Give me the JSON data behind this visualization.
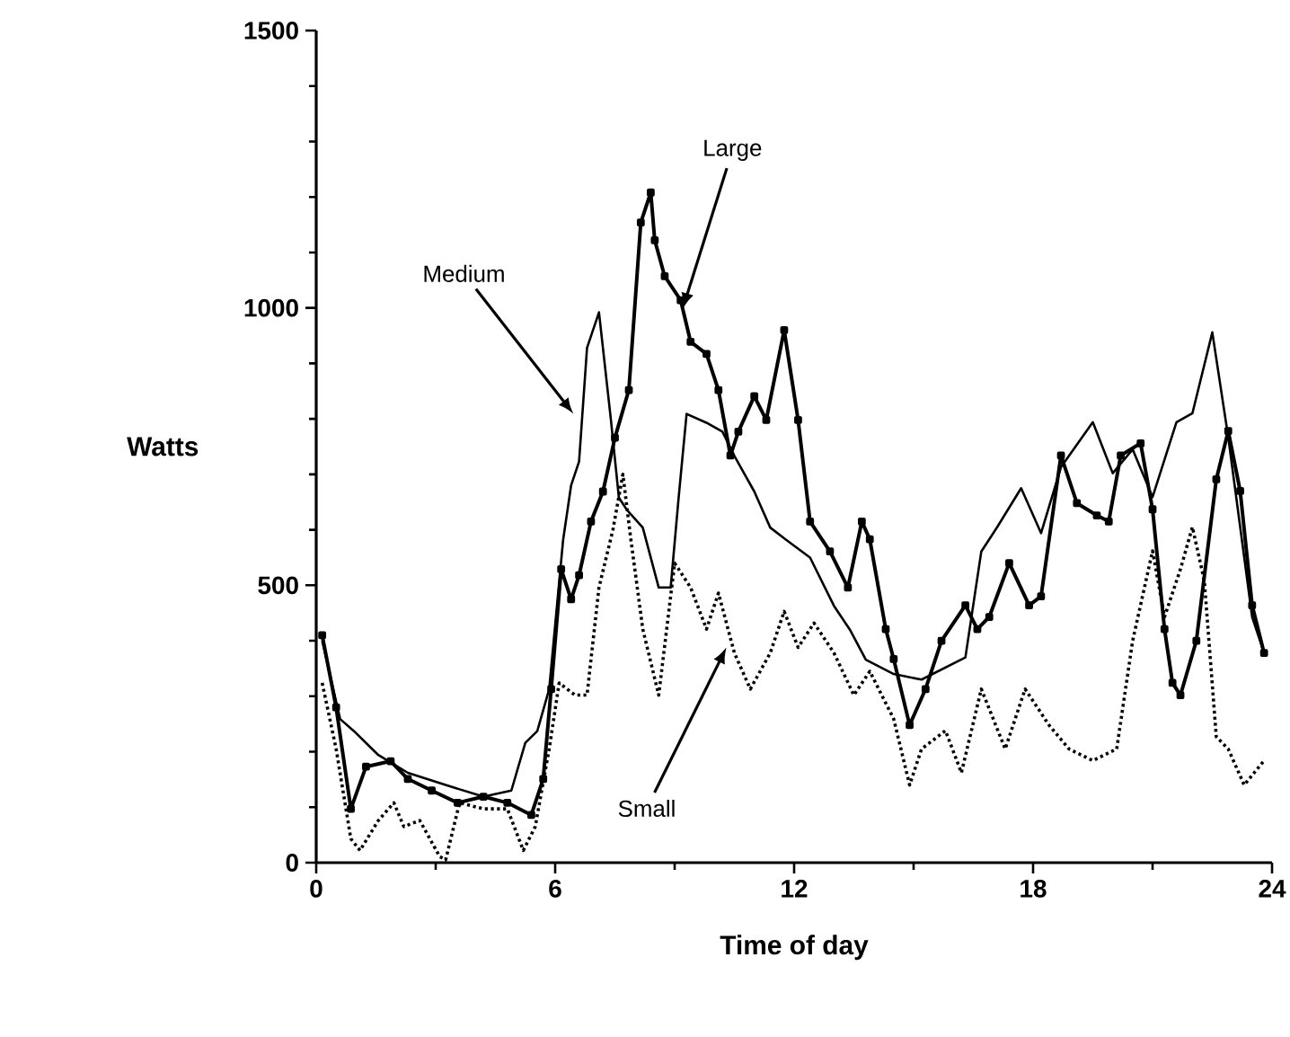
{
  "chart_data": {
    "type": "line",
    "xlabel": "Time of day",
    "ylabel": "Watts",
    "xlim": [
      0,
      24
    ],
    "ylim": [
      0,
      1500
    ],
    "xticks": [
      0,
      6,
      12,
      18,
      24
    ],
    "yticks": [
      0,
      500,
      1000,
      1500
    ],
    "series": [
      {
        "color": "#000000",
        "line_style": "solid",
        "marker": "square",
        "x": [
          0.15,
          0.5,
          0.87,
          1.25,
          1.87,
          2.3,
          2.9,
          3.55,
          4.2,
          4.8,
          5.4,
          5.7,
          5.9,
          6.15,
          6.4,
          6.6,
          6.9,
          7.2,
          7.5,
          7.85,
          8.15,
          8.4,
          8.5,
          8.75,
          9.15,
          9.4,
          9.8,
          10.1,
          10.4,
          10.6,
          11,
          11.3,
          11.75,
          12.1,
          12.4,
          12.9,
          13.35,
          13.7,
          13.9,
          14.3,
          14.5,
          14.9,
          15.3,
          15.7,
          16.3,
          16.6,
          16.9,
          17.4,
          17.9,
          18.2,
          18.7,
          19.1,
          19.6,
          19.9,
          20.2,
          20.7,
          21,
          21.3,
          21.5,
          21.7,
          22.1,
          22.6,
          22.9,
          23.2,
          23.5,
          23.8
        ],
        "values": [
          410,
          280,
          97,
          173,
          183,
          151,
          130,
          108,
          119,
          108,
          86,
          151,
          313,
          529,
          475,
          518,
          615,
          669,
          766,
          852,
          1154,
          1208,
          1122,
          1057,
          1014,
          939,
          917,
          852,
          734,
          777,
          841,
          798,
          960,
          798,
          615,
          561,
          496,
          615,
          583,
          421,
          367,
          248,
          313,
          400,
          464,
          421,
          443,
          540,
          464,
          480,
          734,
          648,
          626,
          615,
          734,
          756,
          637,
          421,
          324,
          302,
          400,
          691,
          778,
          670,
          464,
          378
        ]
      },
      {
        "color": "#000000",
        "line_style": "solid",
        "marker": "none",
        "x": [
          0.15,
          0.6,
          0.95,
          1.56,
          2.3,
          3.25,
          4.2,
          4.9,
          5.25,
          5.55,
          5.85,
          6.2,
          6.4,
          6.6,
          6.8,
          7.1,
          7.4,
          7.6,
          7.8,
          8.2,
          8.6,
          8.9,
          9.1,
          9.3,
          9.8,
          10.2,
          10.5,
          11,
          11.4,
          11.8,
          12.4,
          13,
          13.4,
          13.8,
          14.5,
          15.2,
          16.3,
          16.7,
          17.1,
          17.7,
          18.2,
          18.7,
          19.5,
          20,
          20.5,
          21,
          21.6,
          22,
          22.5,
          22.9,
          23.5,
          23.8
        ],
        "values": [
          400,
          259,
          237,
          194,
          162,
          140,
          119,
          130,
          216,
          237,
          313,
          582,
          680,
          723,
          928,
          992,
          798,
          658,
          636,
          604,
          496,
          496,
          658,
          809,
          793,
          777,
          733,
          669,
          604,
          582,
          550,
          463,
          420,
          366,
          340,
          330,
          370,
          561,
          605,
          675,
          594,
          713,
          794,
          702,
          745,
          659,
          794,
          810,
          956,
          767,
          443,
          378
        ]
      },
      {
        "color": "#000000",
        "line_style": "dotted",
        "marker": "none",
        "x": [
          0.15,
          0.5,
          0.87,
          1.1,
          1.56,
          1.95,
          2.2,
          2.6,
          3.1,
          3.25,
          3.6,
          4.2,
          4.8,
          5.2,
          5.5,
          5.85,
          6.1,
          6.5,
          6.8,
          7.1,
          7.45,
          7.7,
          7.9,
          8.2,
          8.6,
          9,
          9.4,
          9.8,
          10.1,
          10.5,
          10.9,
          11.4,
          11.75,
          12.1,
          12.5,
          13,
          13.5,
          13.9,
          14.5,
          14.9,
          15.2,
          15.8,
          16.2,
          16.7,
          17.3,
          17.8,
          18.4,
          18.9,
          19.5,
          20.1,
          20.5,
          21,
          21.3,
          21.7,
          22,
          22.3,
          22.6,
          22.9,
          23.3,
          23.8
        ],
        "values": [
          324,
          205,
          43,
          22,
          76,
          108,
          65,
          76,
          11,
          5,
          108,
          97,
          97,
          22,
          65,
          205,
          324,
          302,
          302,
          496,
          600,
          700,
          583,
          421,
          302,
          540,
          496,
          421,
          486,
          378,
          313,
          378,
          453,
          388,
          432,
          378,
          302,
          345,
          259,
          140,
          205,
          238,
          162,
          313,
          205,
          313,
          248,
          205,
          184,
          205,
          400,
          562,
          443,
          529,
          605,
          508,
          227,
          205,
          140,
          184
        ]
      }
    ],
    "annotations": [
      {
        "text": "Large",
        "x": 9.2,
        "y": 998
      },
      {
        "text": "Medium",
        "x": 6.46,
        "y": 809
      },
      {
        "text": "Small",
        "x": 10.3,
        "y": 388
      }
    ]
  }
}
